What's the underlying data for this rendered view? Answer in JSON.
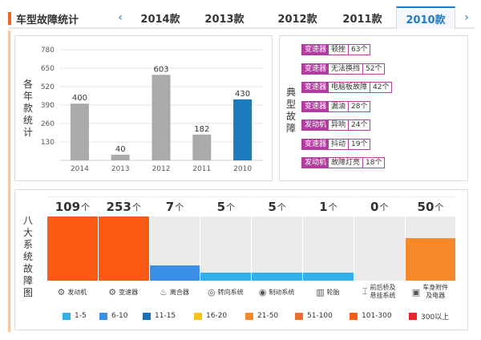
{
  "header": {
    "title": "车型故障统计",
    "prev_icon": "‹",
    "next_icon": "›",
    "tabs": [
      {
        "label": "2014款",
        "active": false
      },
      {
        "label": "2013款",
        "active": false
      },
      {
        "label": "2012款",
        "active": false
      },
      {
        "label": "2011款",
        "active": false
      },
      {
        "label": "2010款",
        "active": true
      }
    ]
  },
  "yearly": {
    "side_label": "各年款统计",
    "chart_data": {
      "type": "bar",
      "categories": [
        "2014",
        "2013",
        "2012",
        "2011",
        "2010"
      ],
      "values": [
        400,
        40,
        603,
        182,
        430
      ],
      "yticks": [
        130,
        260,
        390,
        520,
        650,
        780
      ],
      "ylim": [
        0,
        780
      ],
      "colors": [
        "#aaaaaa",
        "#aaaaaa",
        "#aaaaaa",
        "#aaaaaa",
        "#1a7bbf"
      ],
      "grid": true
    }
  },
  "typical": {
    "side_label": "典型故障",
    "items": [
      {
        "tag": "变速器",
        "desc": "顿挫",
        "count": "63个"
      },
      {
        "tag": "变速器",
        "desc": "无法换挡",
        "count": "52个"
      },
      {
        "tag": "变速器",
        "desc": "电脑板故障",
        "count": "42个"
      },
      {
        "tag": "变速器",
        "desc": "漏油",
        "count": "28个"
      },
      {
        "tag": "发动机",
        "desc": "异响",
        "count": "24个"
      },
      {
        "tag": "变速器",
        "desc": "抖动",
        "count": "19个"
      },
      {
        "tag": "发动机",
        "desc": "故障灯亮",
        "count": "18个"
      }
    ]
  },
  "systems": {
    "side_label": "八大系统故障图",
    "unit": "个",
    "items": [
      {
        "count": "109",
        "label": "发动机",
        "icon": "engine-icon",
        "glyph": "⚙",
        "level": 1.0,
        "color": "#fa5a14"
      },
      {
        "count": "253",
        "label": "变速器",
        "icon": "gearbox-icon",
        "glyph": "⚙",
        "level": 1.0,
        "color": "#fa5a14"
      },
      {
        "count": "7",
        "label": "离合器",
        "icon": "clutch-icon",
        "glyph": "♨",
        "level": 0.24,
        "color": "#3a8ee6"
      },
      {
        "count": "5",
        "label": "转向系统",
        "icon": "steering-icon",
        "glyph": "◎",
        "level": 0.12,
        "color": "#33b0e8"
      },
      {
        "count": "5",
        "label": "制动系统",
        "icon": "brake-icon",
        "glyph": "◉",
        "level": 0.12,
        "color": "#33b0e8"
      },
      {
        "count": "1",
        "label": "轮胎",
        "icon": "tire-icon",
        "glyph": "▥",
        "level": 0.12,
        "color": "#33b0e8"
      },
      {
        "count": "0",
        "label": "前后桥及悬挂系统",
        "label1": "前后桥及",
        "label2": "悬挂系统",
        "icon": "suspension-icon",
        "glyph": "⌶",
        "level": 0.0,
        "color": "#33b0e8"
      },
      {
        "count": "50",
        "label": "车身附件及电器",
        "label1": "车身附件",
        "label2": "及电器",
        "icon": "body-icon",
        "glyph": "▣",
        "level": 0.66,
        "color": "#f6892b"
      }
    ]
  },
  "legend": [
    {
      "label": "1-5",
      "color": "#33b0e8"
    },
    {
      "label": "6-10",
      "color": "#3a8ee6"
    },
    {
      "label": "11-15",
      "color": "#1a6fb5"
    },
    {
      "label": "16-20",
      "color": "#f5c31a"
    },
    {
      "label": "21-50",
      "color": "#f6892b"
    },
    {
      "label": "51-100",
      "color": "#ee6e2c"
    },
    {
      "label": "101-300",
      "color": "#fa5a14"
    },
    {
      "label": "300以上",
      "color": "#e8242a"
    }
  ]
}
